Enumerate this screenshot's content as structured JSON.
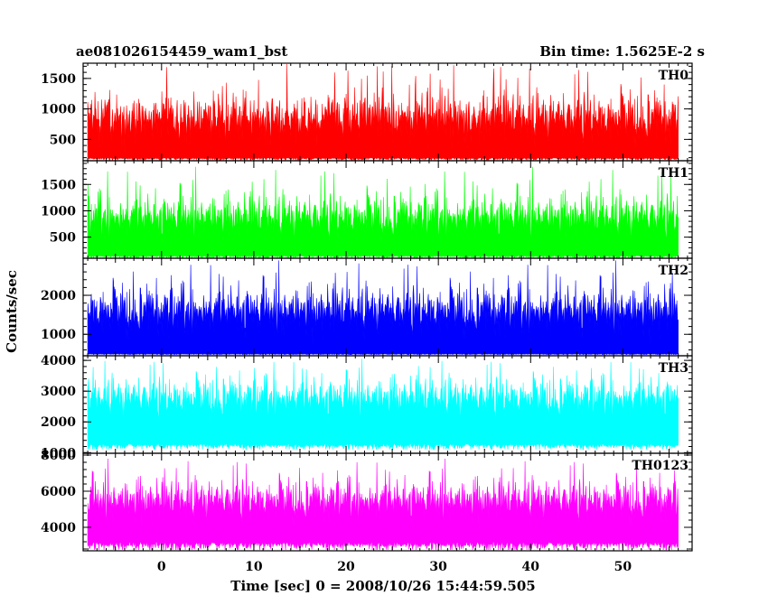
{
  "header": {
    "left_title": "ae081026154459_wam1_bst",
    "right_title": "Bin time: 1.5625E-2 s"
  },
  "chart_data": {
    "type": "line",
    "xlabel": "Time [sec] 0 = 2008/10/26 15:44:59.505",
    "ylabel": "Counts/sec",
    "xlim": [
      -8.5,
      57.5
    ],
    "x_data_range": [
      -8.0,
      56.0
    ],
    "x_ticks": [
      0,
      10,
      20,
      30,
      40,
      50
    ],
    "x_tick_labels": [
      "0",
      "10",
      "20",
      "30",
      "40",
      "50"
    ],
    "bin_time_s": 0.015625,
    "grid": false,
    "panels": [
      {
        "name": "TH0",
        "color": "#ff0000",
        "ylim": [
          150,
          1750
        ],
        "y_ticks": [
          500,
          1000,
          1500
        ],
        "y_tick_labels": [
          "500",
          "1000",
          "1500"
        ],
        "baseline": 200,
        "mean": 850,
        "spread": 280,
        "peak": 1750,
        "floor": 160
      },
      {
        "name": "TH1",
        "color": "#00ff00",
        "ylim": [
          100,
          1950
        ],
        "y_ticks": [
          500,
          1000,
          1500
        ],
        "y_tick_labels": [
          "500",
          "1000",
          "1500"
        ],
        "baseline": 150,
        "mean": 870,
        "spread": 300,
        "peak": 1880,
        "floor": 110
      },
      {
        "name": "TH2",
        "color": "#0000ff",
        "ylim": [
          450,
          2950
        ],
        "y_ticks": [
          1000,
          2000
        ],
        "y_tick_labels": [
          "1000",
          "2000"
        ],
        "baseline": 500,
        "mean": 1600,
        "spread": 430,
        "peak": 2950,
        "floor": 480
      },
      {
        "name": "TH3",
        "color": "#00ffff",
        "ylim": [
          980,
          4150
        ],
        "y_ticks": [
          1000,
          2000,
          3000,
          4000
        ],
        "y_tick_labels": [
          "1000",
          "2000",
          "3000",
          "4000"
        ],
        "baseline": 1300,
        "mean": 2750,
        "spread": 470,
        "peak": 4100,
        "floor": 1100
      },
      {
        "name": "TH0123",
        "color": "#ff00ff",
        "ylim": [
          2700,
          8100
        ],
        "y_ticks": [
          4000,
          6000,
          8000
        ],
        "y_tick_labels": [
          "4000",
          "6000",
          "8000"
        ],
        "baseline": 3200,
        "mean": 5450,
        "spread": 800,
        "peak": 7900,
        "floor": 2750
      }
    ]
  }
}
